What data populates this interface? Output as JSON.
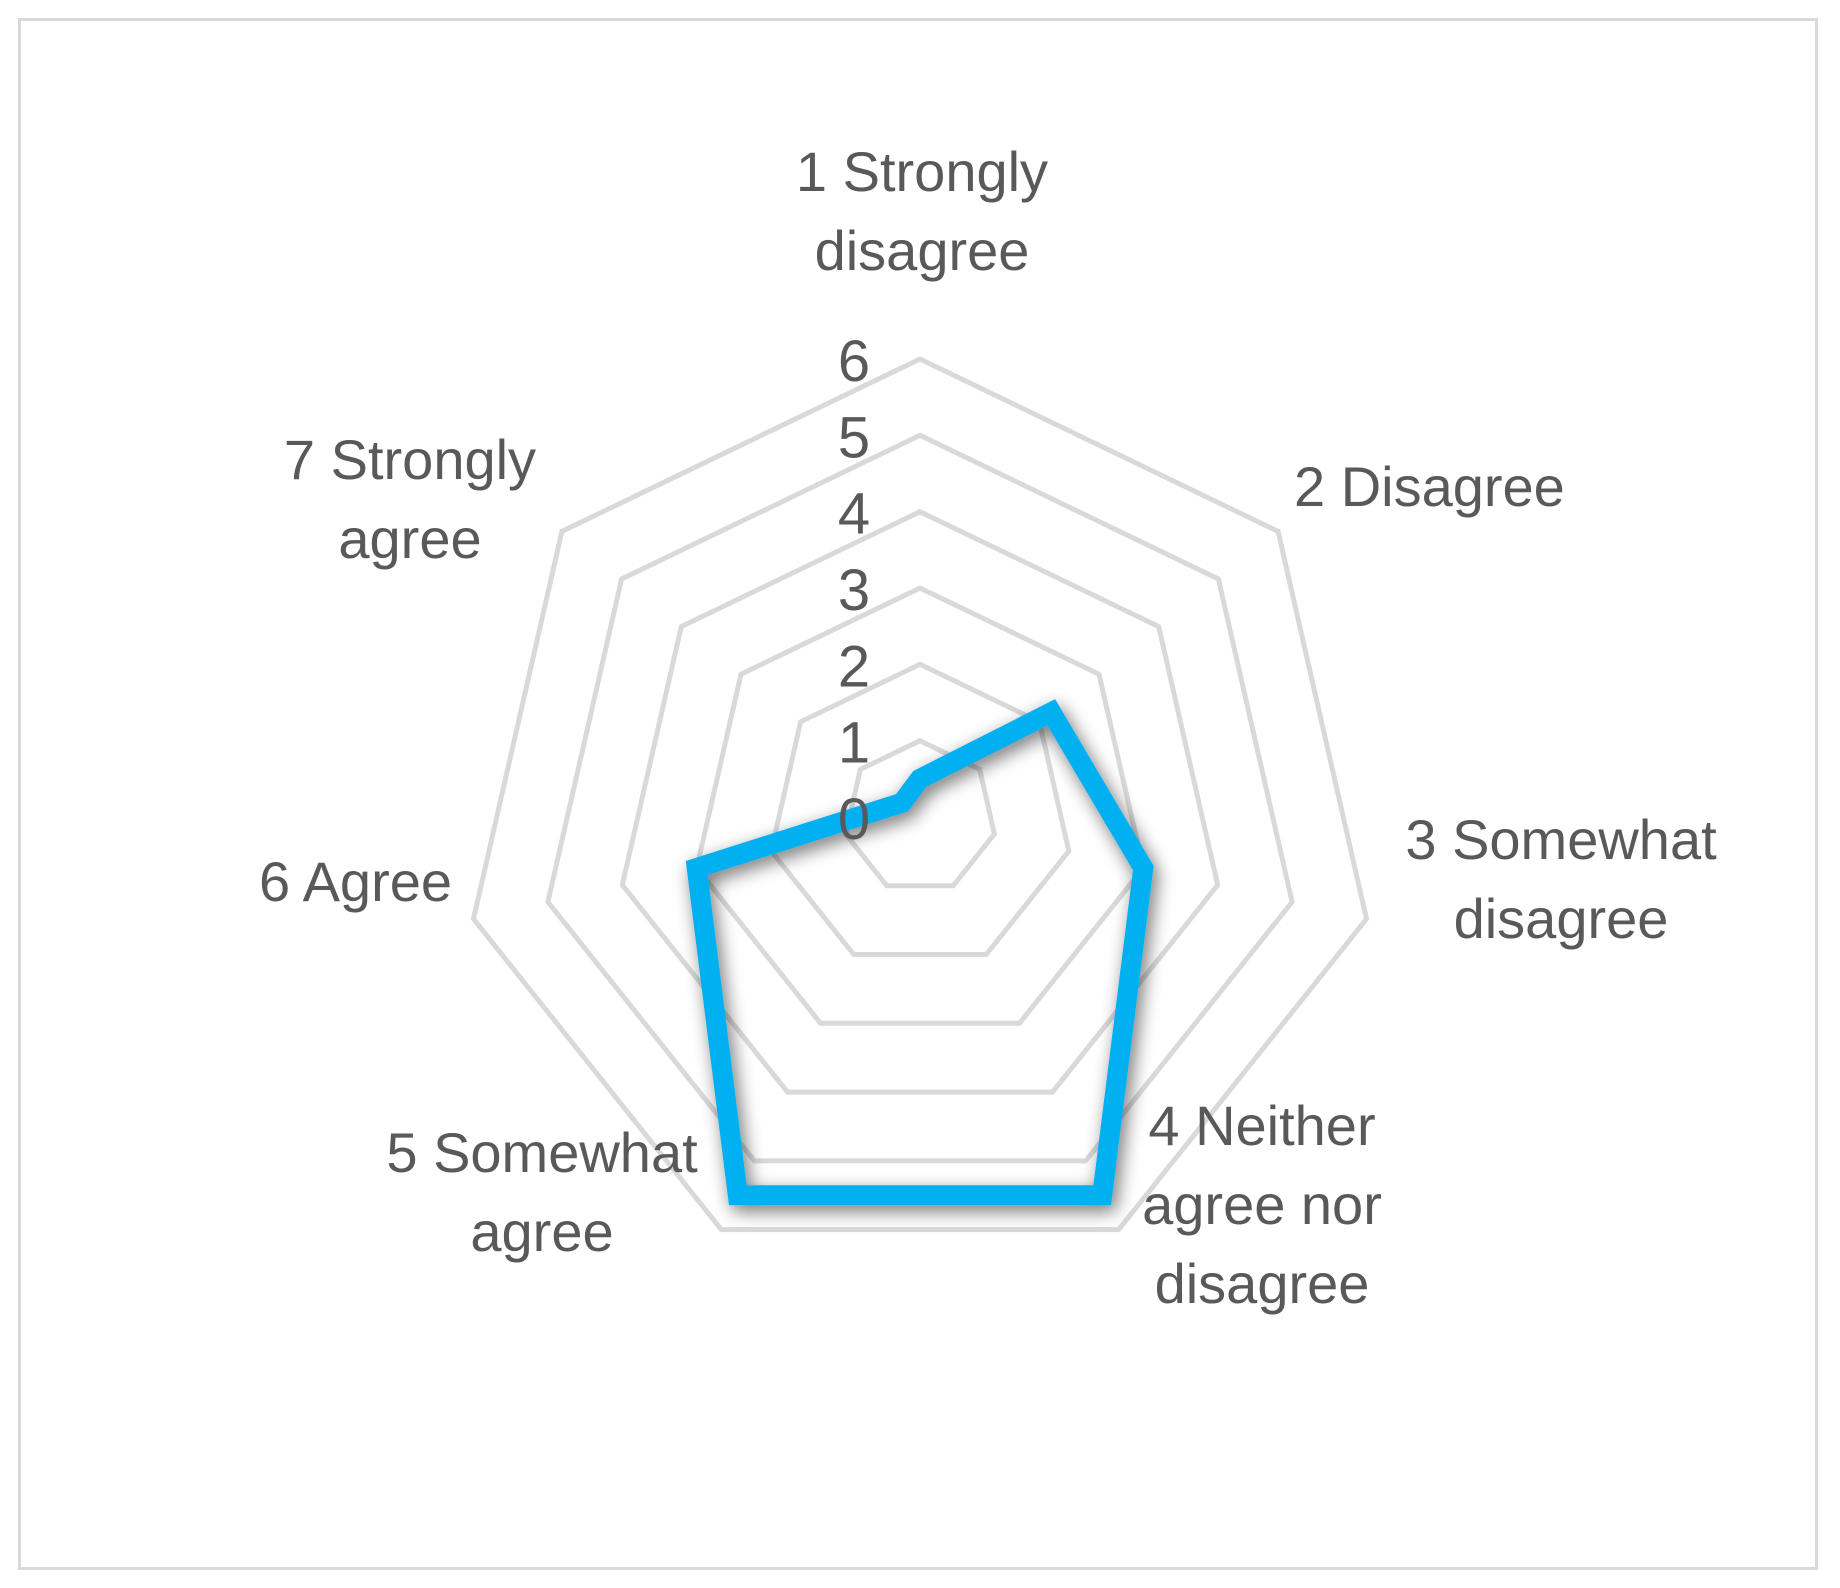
{
  "chart_data": {
    "type": "radar",
    "categories": [
      "1 Strongly disagree",
      "2 Disagree",
      "3 Somewhat disagree",
      "4 Neither agree nor disagree",
      "5 Somewhat agree",
      "6 Agree",
      "7 Strongly agree"
    ],
    "category_lines": [
      [
        "1 Strongly",
        "disagree"
      ],
      [
        "2 Disagree"
      ],
      [
        "3 Somewhat",
        "disagree"
      ],
      [
        "4 Neither",
        "agree nor",
        "disagree"
      ],
      [
        "5 Somewhat",
        "agree"
      ],
      [
        "6 Agree"
      ],
      [
        "7 Strongly",
        "agree"
      ]
    ],
    "series": [
      {
        "values": [
          0.5,
          2.2,
          3.0,
          5.5,
          5.5,
          3.0,
          0.3
        ],
        "color": "#00b0f0"
      }
    ],
    "r_ticks": [
      "0",
      "1",
      "2",
      "3",
      "4",
      "5",
      "6"
    ],
    "rlim": [
      0,
      6
    ],
    "grid": true,
    "grid_color": "#d9d9d9",
    "label_color": "#595959",
    "legend": false
  }
}
